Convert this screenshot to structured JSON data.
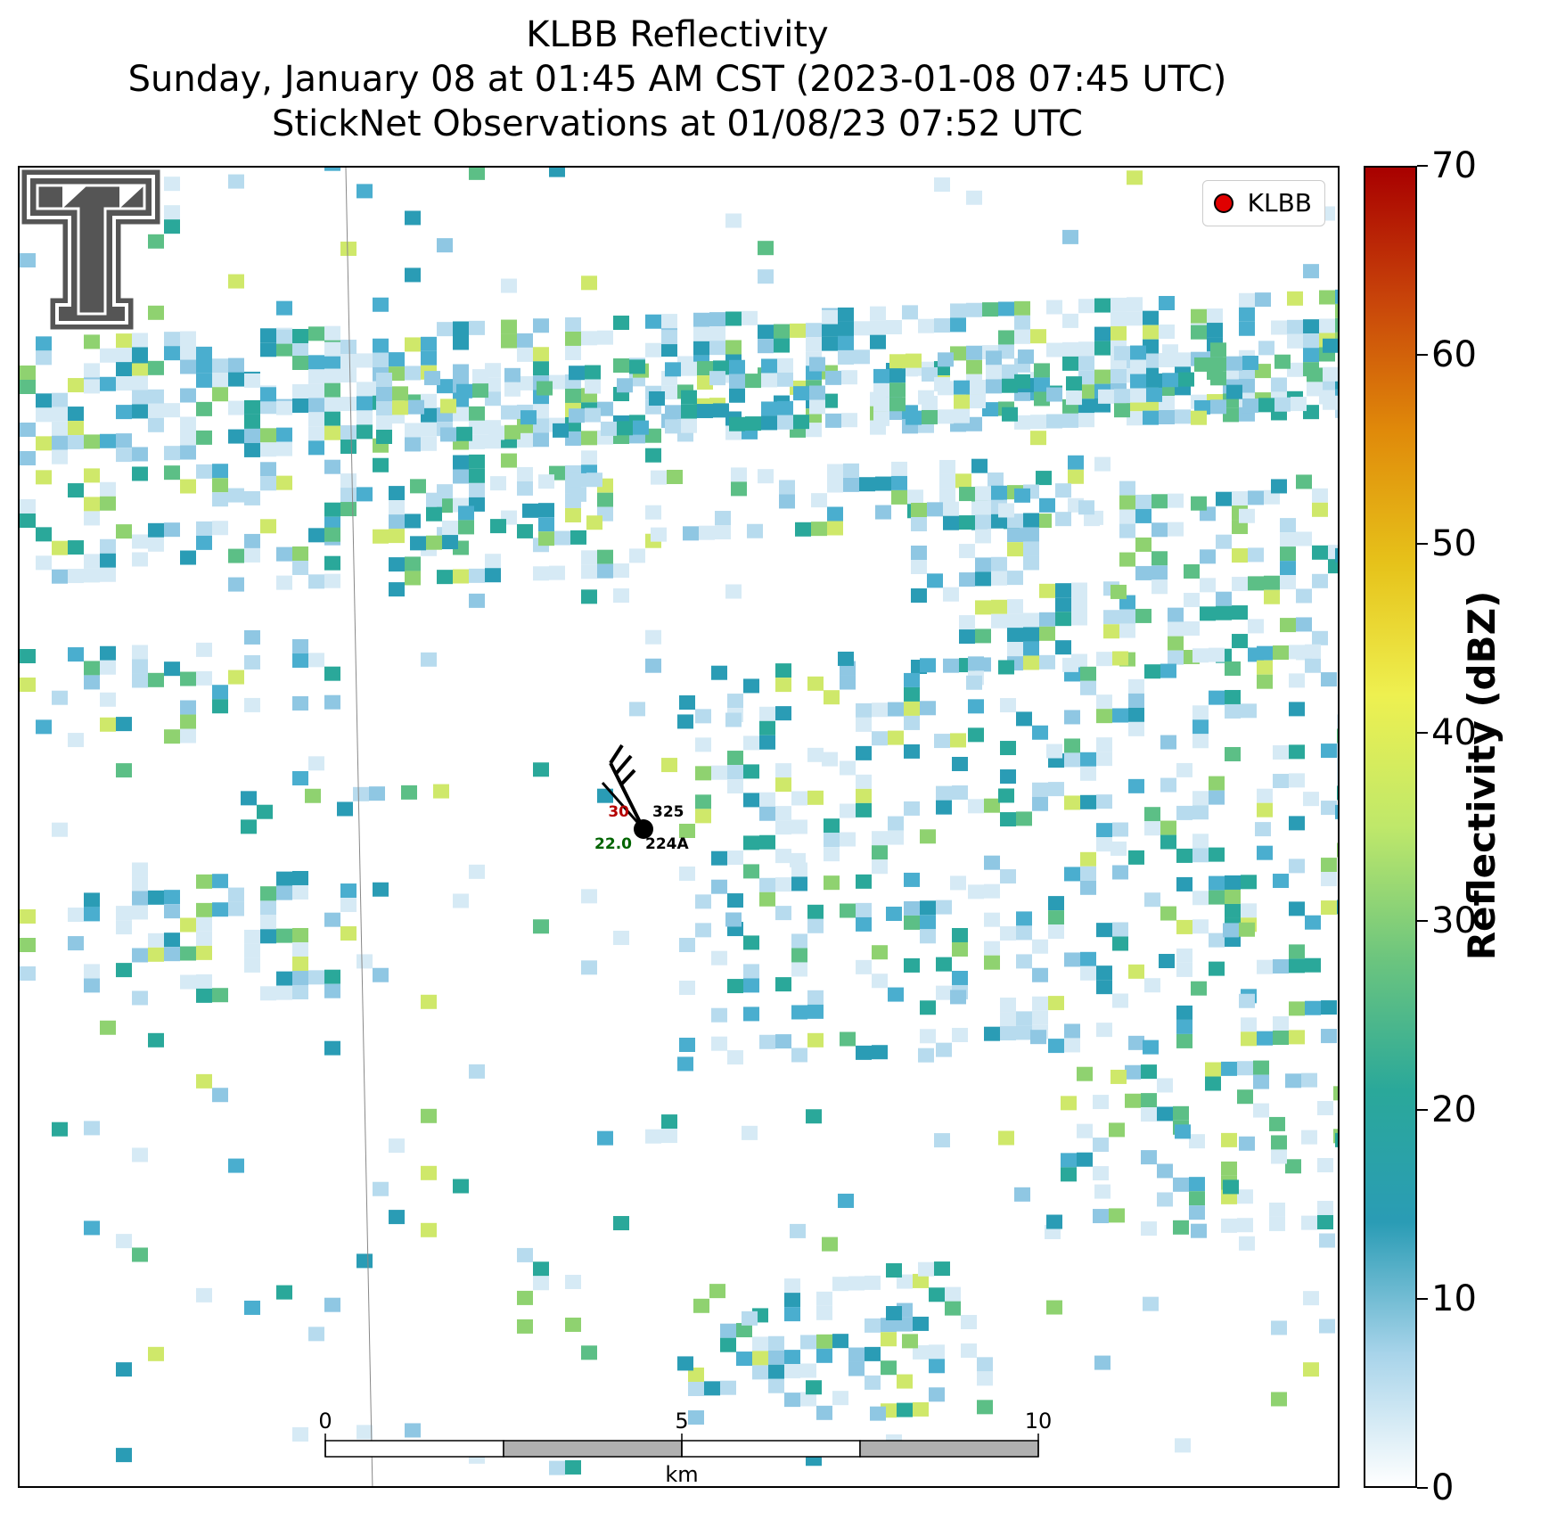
{
  "title": {
    "line1": "KLBB Reflectivity",
    "line2": "Sunday, January 08 at 01:45 AM CST (2023-01-08 07:45 UTC)",
    "line3": "StickNet Observations at 01/08/23 07:52 UTC"
  },
  "legend": {
    "label": "KLBB",
    "marker_color": "#e00000"
  },
  "colorbar": {
    "label": "Reflectivity (dBZ)",
    "min": 0,
    "max": 70,
    "ticks": [
      0,
      10,
      20,
      30,
      40,
      50,
      60,
      70
    ],
    "colors": [
      "#ffffff",
      "#a8d4ea",
      "#2a9cb5",
      "#2aa89a",
      "#6cc57e",
      "#bfe86a",
      "#eef050",
      "#e6c21a",
      "#e08a0a",
      "#c8440a",
      "#a80000"
    ]
  },
  "station": {
    "id": "224A",
    "top_left_value": "30",
    "top_right_value": "325",
    "bottom_left_value": "22.0",
    "top_left_color": "#b40000",
    "bottom_left_color": "#006400"
  },
  "scalebar": {
    "ticks": [
      "0",
      "5",
      "10"
    ],
    "unit": "km"
  },
  "logo": {
    "name": "texas-tech-double-t-logo",
    "color": "#555555"
  },
  "map_features": {
    "county_line_color": "#888888"
  },
  "chart_data": {
    "type": "heatmap",
    "title": "KLBB Reflectivity",
    "colorbar_label": "Reflectivity (dBZ)",
    "value_range": [
      0,
      70
    ],
    "echo_bands": [
      {
        "orientation": "WNW-ESE",
        "value_dbz": [
          0,
          25
        ]
      }
    ]
  }
}
